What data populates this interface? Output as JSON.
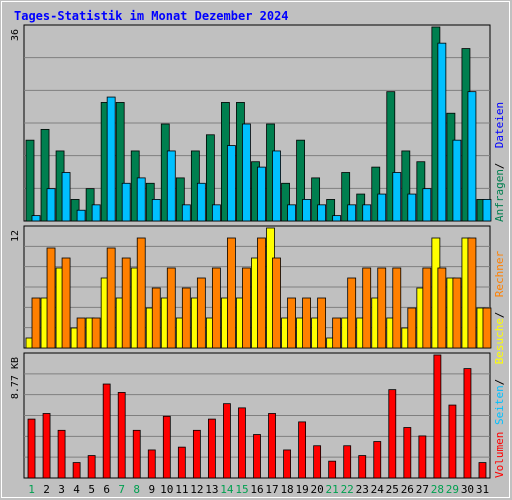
{
  "title": "Tages-Statistik im Monat Dezember 2024",
  "colors": {
    "background": "#c0c0c0",
    "frame": "#ffffff",
    "grid": "#7f7f7f",
    "anfragen": "#007f4f",
    "dateien": "#00c0ff",
    "besuche": "#ffff00",
    "rechner": "#ff8000",
    "volumen": "#ff0000",
    "weekday_label": "#000000",
    "weekend_label": "#00a050"
  },
  "legend_right_top": [
    {
      "label": "Anfragen",
      "color": "#007f4f"
    },
    {
      "label": "Dateien",
      "color": "#0000ff"
    }
  ],
  "legend_right_mid": [
    {
      "label": "Seiten",
      "color": "#00c0ff"
    },
    {
      "label": "Besuche",
      "color": "#ffff00"
    },
    {
      "label": "Rechner",
      "color": "#ff8000"
    }
  ],
  "legend_right_bot": [
    {
      "label": "Volumen",
      "color": "#ff0000"
    }
  ],
  "chart_data": {
    "type": "bar",
    "title": "Tages-Statistik im Monat Dezember 2024",
    "categories": [
      "1",
      "2",
      "3",
      "4",
      "5",
      "6",
      "7",
      "8",
      "9",
      "10",
      "11",
      "12",
      "13",
      "14",
      "15",
      "16",
      "17",
      "18",
      "19",
      "20",
      "21",
      "22",
      "23",
      "24",
      "25",
      "26",
      "27",
      "28",
      "29",
      "30",
      "31"
    ],
    "weekend_days": [
      "1",
      "7",
      "8",
      "14",
      "15",
      "21",
      "22",
      "28",
      "29"
    ],
    "grid": true,
    "panels": [
      {
        "name": "top",
        "ylabel": "36",
        "ymax": 36,
        "gridlines": 6,
        "series": [
          {
            "name": "Anfragen",
            "color": "#007f4f",
            "values": [
              15,
              17,
              13,
              4,
              6,
              22,
              22,
              13,
              7,
              18,
              8,
              13,
              16,
              22,
              22,
              11,
              18,
              7,
              15,
              8,
              4,
              9,
              5,
              10,
              24,
              13,
              11,
              36,
              20,
              32,
              4
            ]
          },
          {
            "name": "Dateien",
            "color": "#00c0ff",
            "values": [
              1,
              6,
              9,
              2,
              3,
              23,
              7,
              8,
              4,
              13,
              3,
              7,
              3,
              14,
              18,
              10,
              13,
              3,
              4,
              3,
              1,
              3,
              3,
              5,
              9,
              5,
              6,
              33,
              15,
              24,
              4
            ]
          }
        ]
      },
      {
        "name": "middle",
        "ylabel": "12",
        "ymax": 12,
        "gridlines": 6,
        "series": [
          {
            "name": "Besuche",
            "color": "#ffff00",
            "values": [
              1,
              5,
              8,
              2,
              3,
              7,
              5,
              8,
              4,
              5,
              3,
              5,
              3,
              5,
              5,
              9,
              12,
              3,
              3,
              3,
              1,
              3,
              3,
              5,
              3,
              2,
              6,
              11,
              7,
              11,
              4
            ]
          },
          {
            "name": "Rechner",
            "color": "#ff8000",
            "values": [
              5,
              10,
              9,
              3,
              3,
              10,
              9,
              11,
              6,
              8,
              6,
              7,
              8,
              11,
              8,
              11,
              9,
              5,
              5,
              5,
              3,
              7,
              8,
              8,
              8,
              4,
              8,
              8,
              7,
              11,
              4
            ]
          }
        ]
      },
      {
        "name": "bottom",
        "ylabel": "8.77 KB",
        "ymax": 8.77,
        "gridlines": 6,
        "series": [
          {
            "name": "Volumen",
            "color": "#ff0000",
            "values": [
              4.2,
              4.6,
              3.4,
              1.1,
              1.6,
              6.7,
              6.1,
              3.4,
              2.0,
              4.4,
              2.2,
              3.4,
              4.2,
              5.3,
              5.0,
              3.1,
              4.6,
              2.0,
              4.0,
              2.3,
              1.2,
              2.3,
              1.6,
              2.6,
              6.3,
              3.6,
              3.0,
              8.77,
              5.2,
              7.8,
              1.1
            ]
          }
        ]
      }
    ]
  }
}
